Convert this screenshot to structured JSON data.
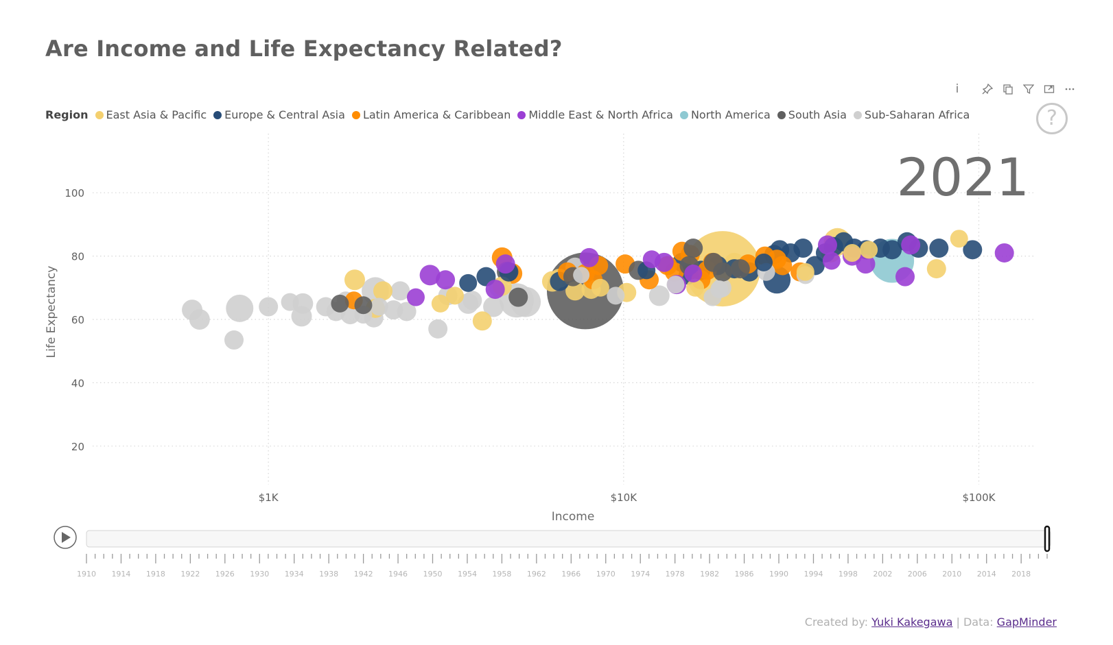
{
  "title": "Are Income and Life Expectancy Related?",
  "toolbar": {
    "info_label": "i"
  },
  "legend": {
    "title": "Region",
    "items": [
      {
        "name": "East Asia & Pacific",
        "color": "#f4d06f"
      },
      {
        "name": "Europe & Central Asia",
        "color": "#274c77"
      },
      {
        "name": "Latin America & Caribbean",
        "color": "#ff8c00"
      },
      {
        "name": "Middle East & North Africa",
        "color": "#9b3fd4"
      },
      {
        "name": "North America",
        "color": "#8ec9d2"
      },
      {
        "name": "South Asia",
        "color": "#5f5f5f"
      },
      {
        "name": "Sub-Saharan Africa",
        "color": "#cfcfcf"
      }
    ]
  },
  "chart_data": {
    "type": "scatter",
    "year_label": "2021",
    "xlabel": "Income",
    "ylabel": "Life Expectancy",
    "x_scale": "log",
    "xlim": [
      320,
      145000
    ],
    "ylim": [
      10,
      110
    ],
    "x_ticks": [
      {
        "value": 1000,
        "label": "$1K"
      },
      {
        "value": 10000,
        "label": "$10K"
      },
      {
        "value": 100000,
        "label": "$100K"
      }
    ],
    "y_ticks": [
      20,
      40,
      60,
      80,
      100
    ],
    "grid": true,
    "points": [
      {
        "x": 7800,
        "y": 69,
        "r": 56,
        "g": 5
      },
      {
        "x": 19000,
        "y": 76,
        "r": 55,
        "g": 0
      },
      {
        "x": 57000,
        "y": 78.5,
        "r": 32,
        "g": 4
      },
      {
        "x": 27000,
        "y": 72.5,
        "r": 20,
        "g": 1
      },
      {
        "x": 40000,
        "y": 84.5,
        "r": 20,
        "g": 0
      },
      {
        "x": 5000,
        "y": 66,
        "r": 25,
        "g": 6
      },
      {
        "x": 5300,
        "y": 65.5,
        "r": 22,
        "g": 6
      },
      {
        "x": 2000,
        "y": 69,
        "r": 20,
        "g": 6
      },
      {
        "x": 830,
        "y": 63.5,
        "r": 20,
        "g": 6
      },
      {
        "x": 610,
        "y": 63,
        "r": 15,
        "g": 6
      },
      {
        "x": 640,
        "y": 60,
        "r": 15,
        "g": 6
      },
      {
        "x": 800,
        "y": 53.5,
        "r": 14,
        "g": 6
      },
      {
        "x": 1000,
        "y": 64,
        "r": 14,
        "g": 6
      },
      {
        "x": 1150,
        "y": 65.5,
        "r": 13,
        "g": 6
      },
      {
        "x": 1250,
        "y": 65,
        "r": 15,
        "g": 6
      },
      {
        "x": 1240,
        "y": 61,
        "r": 15,
        "g": 6
      },
      {
        "x": 1450,
        "y": 64,
        "r": 14,
        "g": 6
      },
      {
        "x": 1550,
        "y": 62.5,
        "r": 14,
        "g": 6
      },
      {
        "x": 1650,
        "y": 66,
        "r": 13,
        "g": 6
      },
      {
        "x": 1700,
        "y": 61.5,
        "r": 14,
        "g": 6
      },
      {
        "x": 1850,
        "y": 61.5,
        "r": 13,
        "g": 6
      },
      {
        "x": 1980,
        "y": 60.5,
        "r": 14,
        "g": 6
      },
      {
        "x": 2050,
        "y": 64,
        "r": 13,
        "g": 6
      },
      {
        "x": 2250,
        "y": 63,
        "r": 14,
        "g": 6
      },
      {
        "x": 2450,
        "y": 62.5,
        "r": 14,
        "g": 6
      },
      {
        "x": 2350,
        "y": 69,
        "r": 14,
        "g": 6
      },
      {
        "x": 3000,
        "y": 57,
        "r": 14,
        "g": 6
      },
      {
        "x": 3200,
        "y": 67.5,
        "r": 14,
        "g": 6
      },
      {
        "x": 3650,
        "y": 65,
        "r": 15,
        "g": 6
      },
      {
        "x": 3750,
        "y": 66,
        "r": 14,
        "g": 6
      },
      {
        "x": 4300,
        "y": 64,
        "r": 15,
        "g": 6
      },
      {
        "x": 4450,
        "y": 70,
        "r": 14,
        "g": 6
      },
      {
        "x": 5200,
        "y": 64,
        "r": 14,
        "g": 6
      },
      {
        "x": 7300,
        "y": 76.5,
        "r": 14,
        "g": 6
      },
      {
        "x": 7600,
        "y": 74,
        "r": 12,
        "g": 6
      },
      {
        "x": 9500,
        "y": 67.5,
        "r": 13,
        "g": 6
      },
      {
        "x": 12600,
        "y": 67.5,
        "r": 15,
        "g": 6
      },
      {
        "x": 14000,
        "y": 71,
        "r": 13,
        "g": 6
      },
      {
        "x": 18600,
        "y": 69.5,
        "r": 13,
        "g": 6
      },
      {
        "x": 17800,
        "y": 67,
        "r": 13,
        "g": 6
      },
      {
        "x": 18900,
        "y": 70,
        "r": 14,
        "g": 6
      },
      {
        "x": 25200,
        "y": 75,
        "r": 13,
        "g": 6
      },
      {
        "x": 32500,
        "y": 74,
        "r": 13,
        "g": 6
      },
      {
        "x": 1750,
        "y": 72.5,
        "r": 15,
        "g": 0
      },
      {
        "x": 2100,
        "y": 69,
        "r": 14,
        "g": 0
      },
      {
        "x": 2000,
        "y": 63.5,
        "r": 14,
        "g": 0
      },
      {
        "x": 3050,
        "y": 65,
        "r": 13,
        "g": 0
      },
      {
        "x": 3350,
        "y": 67.5,
        "r": 13,
        "g": 0
      },
      {
        "x": 4000,
        "y": 59.5,
        "r": 14,
        "g": 0
      },
      {
        "x": 4550,
        "y": 70.5,
        "r": 14,
        "g": 0
      },
      {
        "x": 6300,
        "y": 72,
        "r": 15,
        "g": 0
      },
      {
        "x": 6600,
        "y": 73,
        "r": 14,
        "g": 0
      },
      {
        "x": 7300,
        "y": 69,
        "r": 14,
        "g": 0
      },
      {
        "x": 8100,
        "y": 69.5,
        "r": 14,
        "g": 0
      },
      {
        "x": 8600,
        "y": 70,
        "r": 13,
        "g": 0
      },
      {
        "x": 10200,
        "y": 68.5,
        "r": 14,
        "g": 0
      },
      {
        "x": 15900,
        "y": 70,
        "r": 13,
        "g": 0
      },
      {
        "x": 20500,
        "y": 78,
        "r": 14,
        "g": 0
      },
      {
        "x": 32500,
        "y": 75,
        "r": 13,
        "g": 0
      },
      {
        "x": 38300,
        "y": 81,
        "r": 14,
        "g": 0
      },
      {
        "x": 44000,
        "y": 81,
        "r": 13,
        "g": 0
      },
      {
        "x": 49000,
        "y": 82,
        "r": 13,
        "g": 0
      },
      {
        "x": 76000,
        "y": 76,
        "r": 14,
        "g": 0
      },
      {
        "x": 88000,
        "y": 85.5,
        "r": 13,
        "g": 0
      },
      {
        "x": 3650,
        "y": 71.5,
        "r": 13,
        "g": 1
      },
      {
        "x": 4100,
        "y": 73.5,
        "r": 14,
        "g": 1
      },
      {
        "x": 4750,
        "y": 75,
        "r": 14,
        "g": 1
      },
      {
        "x": 6600,
        "y": 72,
        "r": 14,
        "g": 1
      },
      {
        "x": 11600,
        "y": 75.5,
        "r": 13,
        "g": 1
      },
      {
        "x": 14600,
        "y": 78,
        "r": 14,
        "g": 1
      },
      {
        "x": 15200,
        "y": 74,
        "r": 14,
        "g": 1
      },
      {
        "x": 16500,
        "y": 75.5,
        "r": 14,
        "g": 1
      },
      {
        "x": 18400,
        "y": 77,
        "r": 14,
        "g": 1
      },
      {
        "x": 20500,
        "y": 76,
        "r": 14,
        "g": 1
      },
      {
        "x": 22600,
        "y": 75,
        "r": 14,
        "g": 1
      },
      {
        "x": 24800,
        "y": 78,
        "r": 13,
        "g": 1
      },
      {
        "x": 26500,
        "y": 80.5,
        "r": 14,
        "g": 1
      },
      {
        "x": 27500,
        "y": 82,
        "r": 14,
        "g": 1
      },
      {
        "x": 29500,
        "y": 81,
        "r": 14,
        "g": 1
      },
      {
        "x": 32000,
        "y": 82.5,
        "r": 14,
        "g": 1
      },
      {
        "x": 34600,
        "y": 77,
        "r": 14,
        "g": 1
      },
      {
        "x": 37000,
        "y": 81,
        "r": 14,
        "g": 1
      },
      {
        "x": 39000,
        "y": 83,
        "r": 14,
        "g": 1
      },
      {
        "x": 41600,
        "y": 84.5,
        "r": 14,
        "g": 1
      },
      {
        "x": 44600,
        "y": 82.5,
        "r": 14,
        "g": 1
      },
      {
        "x": 48200,
        "y": 82,
        "r": 14,
        "g": 1
      },
      {
        "x": 52800,
        "y": 82.5,
        "r": 14,
        "g": 1
      },
      {
        "x": 57000,
        "y": 82,
        "r": 14,
        "g": 1
      },
      {
        "x": 62800,
        "y": 84.5,
        "r": 14,
        "g": 1
      },
      {
        "x": 67600,
        "y": 82.5,
        "r": 14,
        "g": 1
      },
      {
        "x": 77200,
        "y": 82.5,
        "r": 14,
        "g": 1
      },
      {
        "x": 96000,
        "y": 82,
        "r": 14,
        "g": 1
      },
      {
        "x": 1740,
        "y": 66,
        "r": 13,
        "g": 2
      },
      {
        "x": 4550,
        "y": 79.5,
        "r": 15,
        "g": 2
      },
      {
        "x": 4850,
        "y": 74.5,
        "r": 15,
        "g": 2
      },
      {
        "x": 6950,
        "y": 75,
        "r": 14,
        "g": 2
      },
      {
        "x": 7800,
        "y": 74.5,
        "r": 14,
        "g": 2
      },
      {
        "x": 8200,
        "y": 72.5,
        "r": 14,
        "g": 2
      },
      {
        "x": 8500,
        "y": 77,
        "r": 14,
        "g": 2
      },
      {
        "x": 10100,
        "y": 77.5,
        "r": 14,
        "g": 2
      },
      {
        "x": 11800,
        "y": 72.5,
        "r": 14,
        "g": 2
      },
      {
        "x": 13300,
        "y": 77,
        "r": 14,
        "g": 2
      },
      {
        "x": 13900,
        "y": 75,
        "r": 14,
        "g": 2
      },
      {
        "x": 14600,
        "y": 81.5,
        "r": 14,
        "g": 2
      },
      {
        "x": 15400,
        "y": 80.5,
        "r": 14,
        "g": 2
      },
      {
        "x": 16500,
        "y": 72.5,
        "r": 14,
        "g": 2
      },
      {
        "x": 17200,
        "y": 75.5,
        "r": 14,
        "g": 2
      },
      {
        "x": 17800,
        "y": 78,
        "r": 14,
        "g": 2
      },
      {
        "x": 22400,
        "y": 77.5,
        "r": 14,
        "g": 2
      },
      {
        "x": 25000,
        "y": 80,
        "r": 14,
        "g": 2
      },
      {
        "x": 27000,
        "y": 79,
        "r": 14,
        "g": 2
      },
      {
        "x": 28000,
        "y": 77,
        "r": 14,
        "g": 2
      },
      {
        "x": 31400,
        "y": 75,
        "r": 14,
        "g": 2
      },
      {
        "x": 2600,
        "y": 67,
        "r": 13,
        "g": 3
      },
      {
        "x": 2850,
        "y": 74,
        "r": 15,
        "g": 3
      },
      {
        "x": 3150,
        "y": 72.5,
        "r": 14,
        "g": 3
      },
      {
        "x": 4350,
        "y": 69.5,
        "r": 14,
        "g": 3
      },
      {
        "x": 4650,
        "y": 77.5,
        "r": 14,
        "g": 3
      },
      {
        "x": 8000,
        "y": 79.5,
        "r": 14,
        "g": 3
      },
      {
        "x": 12000,
        "y": 79,
        "r": 13,
        "g": 3
      },
      {
        "x": 13000,
        "y": 78,
        "r": 14,
        "g": 3
      },
      {
        "x": 14100,
        "y": 71,
        "r": 14,
        "g": 3
      },
      {
        "x": 15700,
        "y": 74.5,
        "r": 13,
        "g": 3
      },
      {
        "x": 37500,
        "y": 83.5,
        "r": 14,
        "g": 3
      },
      {
        "x": 38500,
        "y": 78.5,
        "r": 13,
        "g": 3
      },
      {
        "x": 44000,
        "y": 80,
        "r": 14,
        "g": 3
      },
      {
        "x": 48000,
        "y": 77.5,
        "r": 14,
        "g": 3
      },
      {
        "x": 62000,
        "y": 73.5,
        "r": 14,
        "g": 3
      },
      {
        "x": 64300,
        "y": 83.5,
        "r": 14,
        "g": 3
      },
      {
        "x": 118000,
        "y": 81,
        "r": 14,
        "g": 3
      },
      {
        "x": 1590,
        "y": 65,
        "r": 13,
        "g": 5
      },
      {
        "x": 1850,
        "y": 64.5,
        "r": 13,
        "g": 5
      },
      {
        "x": 4700,
        "y": 75,
        "r": 15,
        "g": 5
      },
      {
        "x": 5050,
        "y": 67,
        "r": 14,
        "g": 5
      },
      {
        "x": 7200,
        "y": 73.5,
        "r": 14,
        "g": 5
      },
      {
        "x": 11000,
        "y": 75.5,
        "r": 14,
        "g": 5
      },
      {
        "x": 15300,
        "y": 77,
        "r": 14,
        "g": 5
      },
      {
        "x": 17900,
        "y": 78,
        "r": 14,
        "g": 5
      },
      {
        "x": 19000,
        "y": 75,
        "r": 14,
        "g": 5
      },
      {
        "x": 21300,
        "y": 76,
        "r": 14,
        "g": 5
      },
      {
        "x": 15700,
        "y": 82.5,
        "r": 14,
        "g": 5
      }
    ]
  },
  "timeline": {
    "years": [
      "1910",
      "1914",
      "1918",
      "1922",
      "1926",
      "1930",
      "1934",
      "1938",
      "1942",
      "1946",
      "1950",
      "1954",
      "1958",
      "1962",
      "1966",
      "1970",
      "1974",
      "1978",
      "1982",
      "1986",
      "1990",
      "1994",
      "1998",
      "2002",
      "2006",
      "2010",
      "2014",
      "2018"
    ],
    "start_year": 1910,
    "end_year": 2021,
    "current_year": 2021
  },
  "footer": {
    "created_by_label": "Created by:",
    "author": "Yuki Kakegawa",
    "separator": "|",
    "data_label": "Data:",
    "data_source": "GapMinder"
  }
}
